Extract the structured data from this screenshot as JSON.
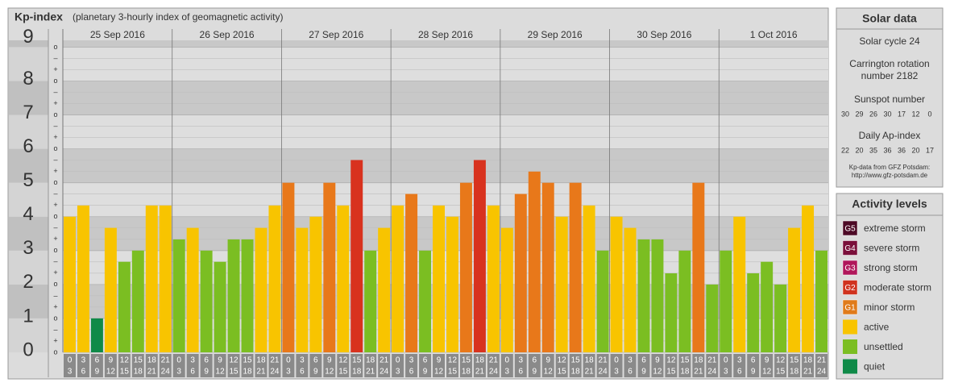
{
  "chart_data": {
    "type": "bar",
    "title": "Kp-index",
    "subtitle": "(planetary 3-hourly index of geomagnetic activity)",
    "days": [
      "25 Sep 2016",
      "26 Sep 2016",
      "27 Sep 2016",
      "28 Sep 2016",
      "29 Sep 2016",
      "30 Sep 2016",
      "1 Oct 2016"
    ],
    "hours_start": [
      "0",
      "3",
      "6",
      "9",
      "12",
      "15",
      "18",
      "21"
    ],
    "hours_end": [
      "3",
      "6",
      "9",
      "12",
      "15",
      "18",
      "21",
      "24"
    ],
    "values": [
      4,
      4.33,
      1,
      3.67,
      2.67,
      3,
      4.33,
      4.33,
      3.33,
      3.67,
      3,
      2.67,
      3.33,
      3.33,
      3.67,
      4.33,
      5,
      3.67,
      4,
      5,
      4.33,
      5.67,
      3,
      3.67,
      4.33,
      4.67,
      3,
      4.33,
      4,
      5,
      5.67,
      4.33,
      3.67,
      4.67,
      5.33,
      5,
      4,
      5,
      4.33,
      3,
      4,
      3.67,
      3.33,
      3.33,
      2.33,
      3,
      5,
      2,
      3,
      4,
      2.33,
      2.67,
      2,
      3.67,
      4.33,
      3
    ],
    "colors": [
      "#f8c400",
      "#f8c400",
      "#0f8a48",
      "#f8c400",
      "#7bbe22",
      "#7bbe22",
      "#f8c400",
      "#f8c400",
      "#7bbe22",
      "#f8c400",
      "#7bbe22",
      "#7bbe22",
      "#7bbe22",
      "#7bbe22",
      "#f8c400",
      "#f8c400",
      "#e8781a",
      "#f8c400",
      "#f8c400",
      "#e8781a",
      "#f8c400",
      "#d8321e",
      "#7bbe22",
      "#f8c400",
      "#f8c400",
      "#e8781a",
      "#7bbe22",
      "#f8c400",
      "#f8c400",
      "#e8781a",
      "#d8321e",
      "#f8c400",
      "#f8c400",
      "#e8781a",
      "#e8781a",
      "#e8781a",
      "#f8c400",
      "#e8781a",
      "#f8c400",
      "#7bbe22",
      "#f8c400",
      "#f8c400",
      "#7bbe22",
      "#7bbe22",
      "#7bbe22",
      "#7bbe22",
      "#e8781a",
      "#7bbe22",
      "#7bbe22",
      "#f8c400",
      "#7bbe22",
      "#7bbe22",
      "#7bbe22",
      "#f8c400",
      "#f8c400",
      "#7bbe22"
    ],
    "ylim": [
      0,
      9.2
    ],
    "yticks": [
      0,
      1,
      2,
      3,
      4,
      5,
      6,
      7,
      8,
      9
    ],
    "sublabels": [
      "o",
      "+",
      "–"
    ]
  },
  "solar": {
    "title": "Solar data",
    "cycle": "Solar cycle 24",
    "carrington": "Carrington rotation number 2182",
    "sunspot_title": "Sunspot number",
    "sunspot": [
      30,
      29,
      26,
      30,
      17,
      12,
      0
    ],
    "ap_title": "Daily Ap-index",
    "ap": [
      22,
      20,
      35,
      36,
      36,
      20,
      17
    ],
    "credit": "Kp-data from GFZ Potsdam:",
    "credit_url": "http://www.gfz-potsdam.de"
  },
  "levels": {
    "title": "Activity levels",
    "items": [
      {
        "badge": "G5",
        "name": "extreme storm",
        "color": "#4d0a26"
      },
      {
        "badge": "G4",
        "name": "severe storm",
        "color": "#7a0f3a"
      },
      {
        "badge": "G3",
        "name": "strong storm",
        "color": "#b0165a"
      },
      {
        "badge": "G2",
        "name": "moderate storm",
        "color": "#d0321e"
      },
      {
        "badge": "G1",
        "name": "minor storm",
        "color": "#e07b1a"
      },
      {
        "name": "active",
        "color": "#f8c400"
      },
      {
        "name": "unsettled",
        "color": "#7bbe22"
      },
      {
        "name": "quiet",
        "color": "#0f8a48"
      }
    ]
  }
}
